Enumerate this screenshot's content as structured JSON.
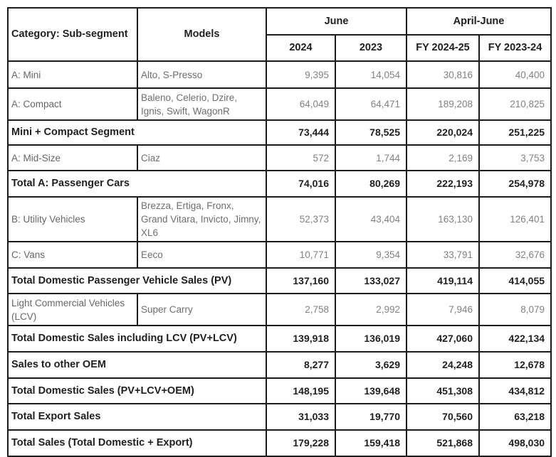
{
  "table": {
    "header": {
      "category": "Category: Sub-segment",
      "models": "Models",
      "june": "June",
      "april_june": "April-June",
      "col_2024": "2024",
      "col_2023": "2023",
      "fy_2024_25": "FY 2024-25",
      "fy_2023_24": "FY 2023-24"
    },
    "rows": [
      {
        "type": "data",
        "category": "A: Mini",
        "models": "Alto, S-Presso",
        "values": [
          "9,395",
          "14,054",
          "30,816",
          "40,400"
        ]
      },
      {
        "type": "data",
        "category": "A: Compact",
        "models": "Baleno, Celerio, Dzire, Ignis, Swift, WagonR",
        "values": [
          "64,049",
          "64,471",
          "189,208",
          "210,825"
        ]
      },
      {
        "type": "total",
        "category": "Mini + Compact Segment",
        "values": [
          "73,444",
          "78,525",
          "220,024",
          "251,225"
        ]
      },
      {
        "type": "data",
        "category": "A: Mid-Size",
        "models": "Ciaz",
        "values": [
          "572",
          "1,744",
          "2,169",
          "3,753"
        ]
      },
      {
        "type": "total",
        "category": "Total A: Passenger Cars",
        "values": [
          "74,016",
          "80,269",
          "222,193",
          "254,978"
        ]
      },
      {
        "type": "data",
        "category": "B: Utility Vehicles",
        "models": "Brezza, Ertiga, Fronx, Grand Vitara, Invicto, Jimny, XL6",
        "values": [
          "52,373",
          "43,404",
          "163,130",
          "126,401"
        ]
      },
      {
        "type": "data",
        "category": "C: Vans",
        "models": "Eeco",
        "values": [
          "10,771",
          "9,354",
          "33,791",
          "32,676"
        ]
      },
      {
        "type": "total",
        "category": "Total Domestic Passenger Vehicle Sales (PV)",
        "values": [
          "137,160",
          "133,027",
          "419,114",
          "414,055"
        ]
      },
      {
        "type": "data",
        "category": "Light Commercial Vehicles (LCV)",
        "models": "Super Carry",
        "values": [
          "2,758",
          "2,992",
          "7,946",
          "8,079"
        ]
      },
      {
        "type": "total",
        "category": "Total Domestic Sales including LCV (PV+LCV)",
        "values": [
          "139,918",
          "136,019",
          "427,060",
          "422,134"
        ]
      },
      {
        "type": "total",
        "category": "Sales to other OEM",
        "values": [
          "8,277",
          "3,629",
          "24,248",
          "12,678"
        ]
      },
      {
        "type": "total",
        "category": "Total Domestic Sales (PV+LCV+OEM)",
        "values": [
          "148,195",
          "139,648",
          "451,308",
          "434,812"
        ]
      },
      {
        "type": "total",
        "category": "Total Export Sales",
        "values": [
          "31,033",
          "19,770",
          "70,560",
          "63,218"
        ]
      },
      {
        "type": "total",
        "category": "Total Sales (Total Domestic + Export)",
        "values": [
          "179,228",
          "159,418",
          "521,868",
          "498,030"
        ]
      }
    ]
  },
  "chart_data": {
    "type": "table",
    "title": "Monthly vehicle sales by category and sub-segment",
    "columns": [
      "Category: Sub-segment",
      "Models",
      "June 2024",
      "June 2023",
      "April-June FY 2024-25",
      "April-June FY 2023-24"
    ],
    "rows": [
      [
        "A: Mini",
        "Alto, S-Presso",
        9395,
        14054,
        30816,
        40400
      ],
      [
        "A: Compact",
        "Baleno, Celerio, Dzire, Ignis, Swift, WagonR",
        64049,
        64471,
        189208,
        210825
      ],
      [
        "Mini + Compact Segment",
        null,
        73444,
        78525,
        220024,
        251225
      ],
      [
        "A: Mid-Size",
        "Ciaz",
        572,
        1744,
        2169,
        3753
      ],
      [
        "Total A: Passenger Cars",
        null,
        74016,
        80269,
        222193,
        254978
      ],
      [
        "B: Utility Vehicles",
        "Brezza, Ertiga, Fronx, Grand Vitara, Invicto, Jimny, XL6",
        52373,
        43404,
        163130,
        126401
      ],
      [
        "C: Vans",
        "Eeco",
        10771,
        9354,
        33791,
        32676
      ],
      [
        "Total Domestic Passenger Vehicle Sales (PV)",
        null,
        137160,
        133027,
        419114,
        414055
      ],
      [
        "Light Commercial Vehicles (LCV)",
        "Super Carry",
        2758,
        2992,
        7946,
        8079
      ],
      [
        "Total Domestic Sales including LCV (PV+LCV)",
        null,
        139918,
        136019,
        427060,
        422134
      ],
      [
        "Sales to other OEM",
        null,
        8277,
        3629,
        24248,
        12678
      ],
      [
        "Total Domestic Sales (PV+LCV+OEM)",
        null,
        148195,
        139648,
        451308,
        434812
      ],
      [
        "Total Export Sales",
        null,
        31033,
        19770,
        70560,
        63218
      ],
      [
        "Total Sales (Total Domestic + Export)",
        null,
        179228,
        159418,
        521868,
        498030
      ]
    ]
  }
}
